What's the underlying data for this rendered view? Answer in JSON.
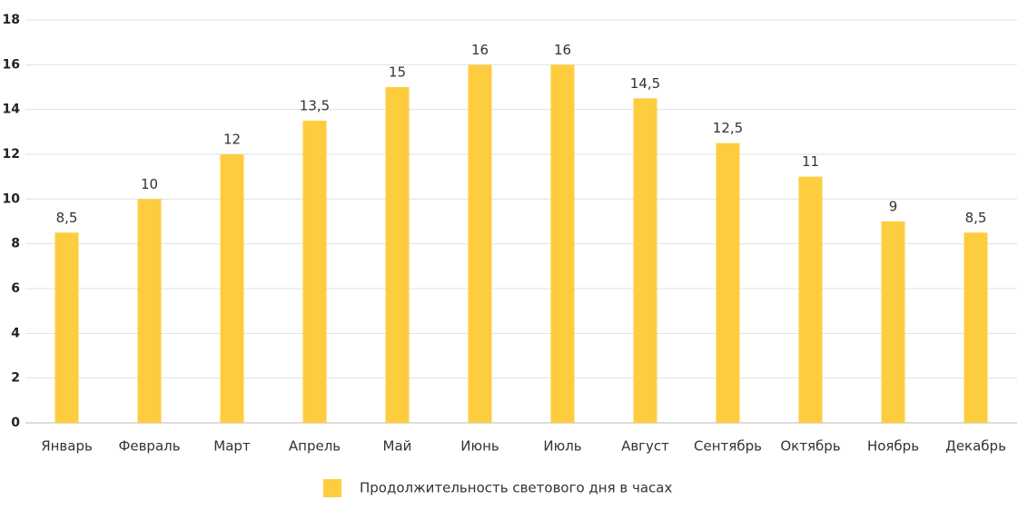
{
  "chart_data": {
    "type": "bar",
    "categories": [
      "Январь",
      "Февраль",
      "Март",
      "Апрель",
      "Май",
      "Июнь",
      "Июль",
      "Август",
      "Сентябрь",
      "Октябрь",
      "Ноябрь",
      "Декабрь"
    ],
    "series": [
      {
        "name": "Продолжительность светового дня в часах",
        "color": "#fdcd3f",
        "values": [
          8.5,
          10,
          12,
          13.5,
          15,
          16,
          16,
          14.5,
          12.5,
          11,
          9,
          8.5
        ],
        "value_labels": [
          "8,5",
          "10",
          "12",
          "13,5",
          "15",
          "16",
          "16",
          "14,5",
          "12,5",
          "11",
          "9",
          "8,5"
        ]
      }
    ],
    "ylim": [
      0,
      18
    ],
    "yticks": [
      0,
      2,
      4,
      6,
      8,
      10,
      12,
      14,
      16,
      18
    ],
    "grid": true,
    "legend": "bottom"
  }
}
